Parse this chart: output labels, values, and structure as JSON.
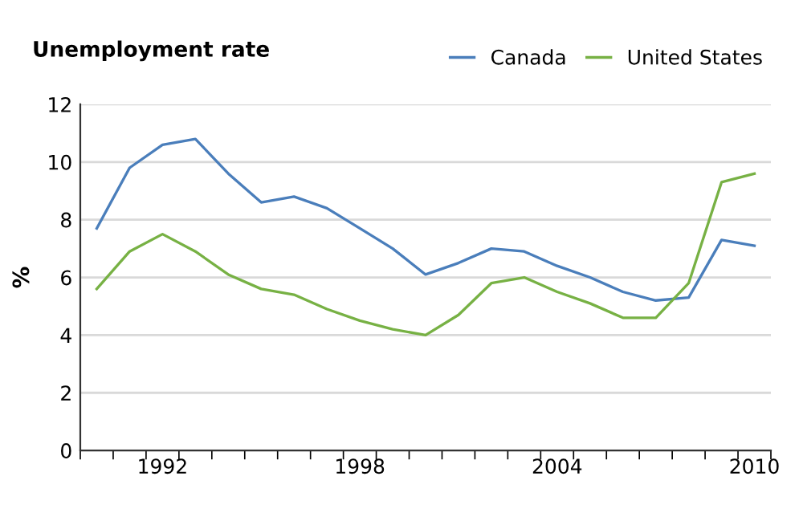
{
  "chart_data": {
    "type": "line",
    "title": "Unemployment rate",
    "ylabel": "%",
    "categories": [
      null,
      null,
      "1992",
      null,
      null,
      null,
      null,
      null,
      "1998",
      null,
      null,
      null,
      null,
      null,
      "2004",
      null,
      null,
      null,
      null,
      null,
      "2010"
    ],
    "series": [
      {
        "name": "Canada",
        "color": "#4a7ebb",
        "values": [
          7.7,
          9.8,
          10.6,
          10.8,
          9.6,
          8.6,
          8.8,
          8.4,
          7.7,
          7.0,
          6.1,
          6.5,
          7.0,
          6.9,
          6.4,
          6.0,
          5.5,
          5.2,
          5.3,
          7.3,
          7.1
        ]
      },
      {
        "name": "United States",
        "color": "#77b144",
        "values": [
          5.6,
          6.9,
          7.5,
          6.9,
          6.1,
          5.6,
          5.4,
          4.9,
          4.5,
          4.2,
          4.0,
          4.7,
          5.8,
          6.0,
          5.5,
          5.1,
          4.6,
          4.6,
          5.8,
          9.3,
          9.6
        ]
      }
    ],
    "ylim": [
      0,
      12
    ],
    "yticks": [
      0,
      2,
      4,
      6,
      8,
      10,
      12
    ],
    "grid": "y",
    "legend": "top right",
    "marker": "none",
    "line_style": "solid"
  }
}
